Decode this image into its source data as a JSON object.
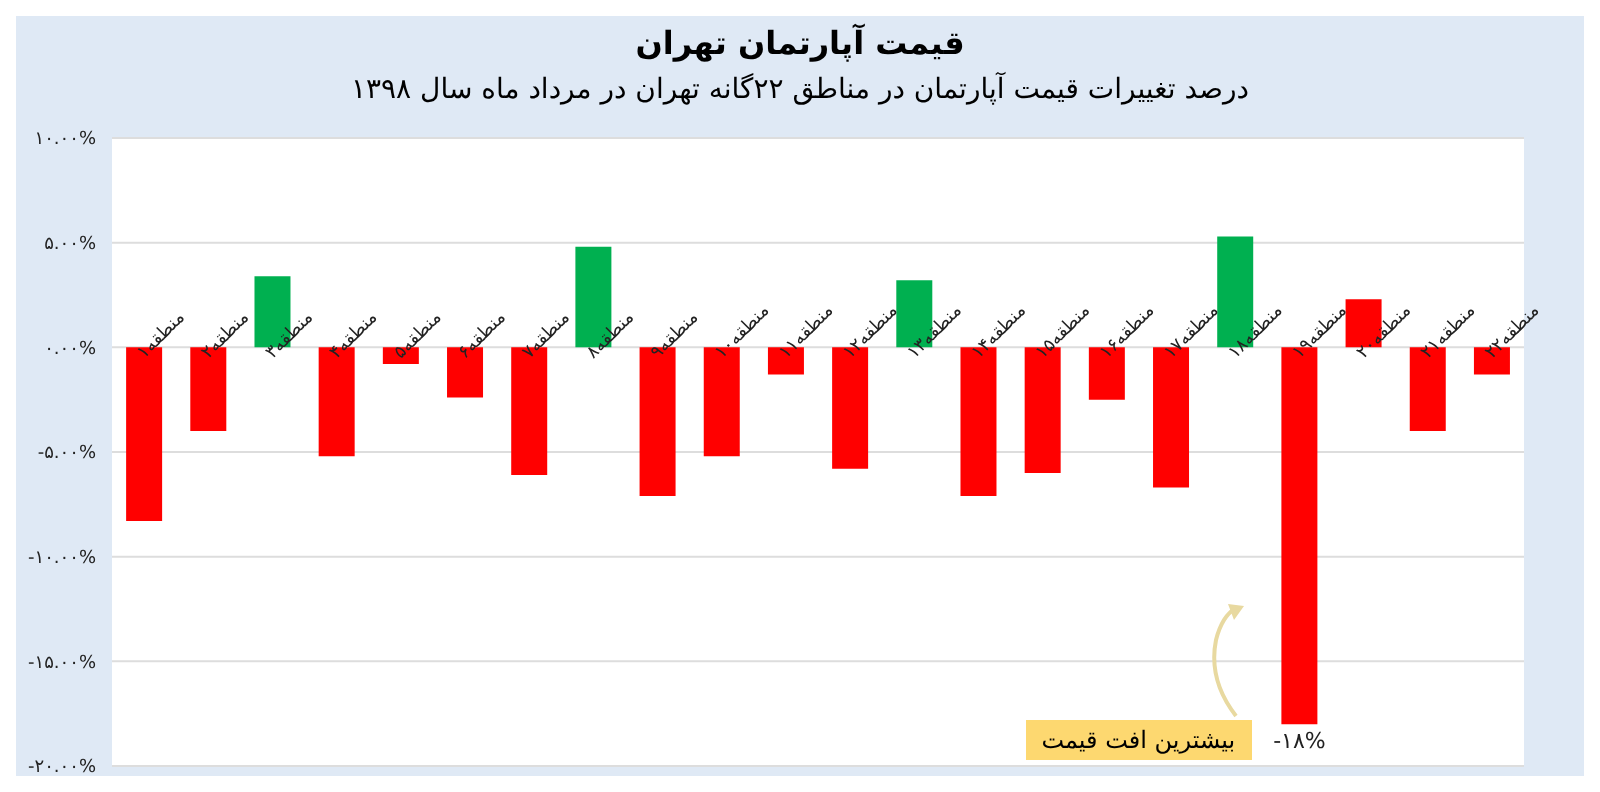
{
  "chart_data": {
    "type": "bar",
    "title": "قیمت آپارتمان تهران",
    "subtitle": "درصد تغییرات قیمت آپارتمان در مناطق ۲۲گانه تهران در مرداد ماه سال ۱۳۹۸",
    "categories": [
      "منطقه۱",
      "منطقه۲",
      "منطقه۳",
      "منطقه۴",
      "منطقه۵",
      "منطقه۶",
      "منطقه۷",
      "منطقه۸",
      "منطقه۹",
      "منطقه۱۰",
      "منطقه۱۱",
      "منطقه۱۲",
      "منطقه۱۳",
      "منطقه۱۴",
      "منطقه۱۵",
      "منطقه۱۶",
      "منطقه۱۷",
      "منطقه۱۸",
      "منطقه۱۹",
      "منطقه۲۰",
      "منطقه۲۱",
      "منطقه۲۲"
    ],
    "values": [
      -8.3,
      -4.0,
      3.4,
      -5.2,
      -0.8,
      -2.4,
      -6.1,
      4.8,
      -7.1,
      -5.2,
      -1.3,
      -5.8,
      3.2,
      -7.1,
      -6.0,
      -2.5,
      -6.7,
      5.3,
      -18,
      2.3,
      -4.0,
      -1.3
    ],
    "colors": [
      "#ff0000",
      "#ff0000",
      "#00b050",
      "#ff0000",
      "#ff0000",
      "#ff0000",
      "#ff0000",
      "#00b050",
      "#ff0000",
      "#ff0000",
      "#ff0000",
      "#ff0000",
      "#00b050",
      "#ff0000",
      "#ff0000",
      "#ff0000",
      "#ff0000",
      "#00b050",
      "#ff0000",
      "#ff0000",
      "#ff0000",
      "#ff0000"
    ],
    "value_labels": [
      null,
      null,
      null,
      null,
      null,
      null,
      null,
      null,
      null,
      null,
      null,
      null,
      null,
      null,
      null,
      null,
      null,
      null,
      "-۱۸%",
      null,
      null,
      null
    ],
    "ylim": [
      -20,
      10
    ],
    "yticks": [
      {
        "value": -20,
        "label": "-۲۰.۰۰%"
      },
      {
        "value": -15,
        "label": "-۱۵.۰۰%"
      },
      {
        "value": -10,
        "label": "-۱۰.۰۰%"
      },
      {
        "value": -5,
        "label": "-۵.۰۰%"
      },
      {
        "value": 0,
        "label": "۰.۰۰%"
      },
      {
        "value": 5,
        "label": "۵.۰۰%"
      },
      {
        "value": 10,
        "label": "۱۰.۰۰%"
      }
    ],
    "grid": "y",
    "annotations": [
      "بیشترین افت قیمت"
    ]
  }
}
